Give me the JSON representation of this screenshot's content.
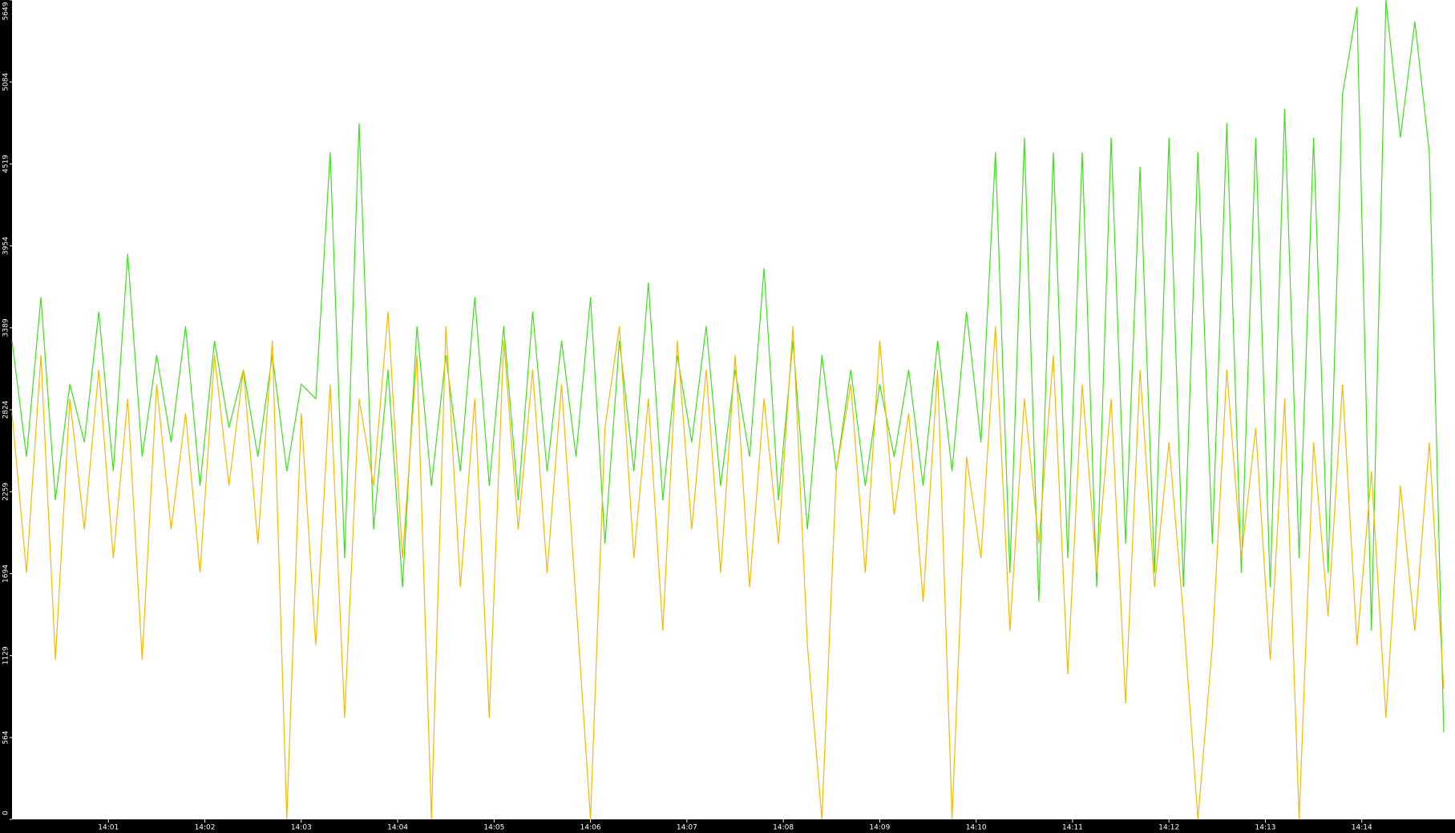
{
  "chart_data": {
    "type": "line",
    "x": [
      0,
      9,
      18,
      27,
      36,
      45,
      54,
      63,
      72,
      81,
      90,
      99,
      108,
      117,
      126,
      135,
      144,
      153,
      162,
      171,
      180,
      189,
      198,
      207,
      216,
      225,
      234,
      243,
      252,
      261,
      270,
      279,
      288,
      297,
      306,
      315,
      324,
      333,
      342,
      351,
      360,
      369,
      378,
      387,
      396,
      405,
      414,
      423,
      432,
      441,
      450,
      459,
      468,
      477,
      486,
      495,
      504,
      513,
      522,
      531,
      540,
      549,
      558,
      567,
      576,
      585,
      594,
      603,
      612,
      621,
      630,
      639,
      648,
      657,
      666,
      675,
      684,
      693,
      702,
      711,
      720,
      729,
      738,
      747,
      756,
      765,
      774,
      783,
      792,
      801,
      810,
      819,
      828,
      837,
      846,
      855,
      864,
      873,
      882,
      891
    ],
    "series": [
      {
        "color": "#3ee01a",
        "values": [
          3300,
          2500,
          3600,
          2200,
          3000,
          2600,
          3500,
          2400,
          3900,
          2500,
          3200,
          2600,
          3400,
          2300,
          3300,
          2700,
          3100,
          2500,
          3200,
          2400,
          3000,
          2900,
          4600,
          1800,
          4800,
          2000,
          3100,
          1600,
          3400,
          2300,
          3200,
          2400,
          3600,
          2300,
          3400,
          2200,
          3500,
          2400,
          3300,
          2500,
          3600,
          1900,
          3300,
          2400,
          3700,
          2200,
          3200,
          2600,
          3400,
          2300,
          3100,
          2500,
          3800,
          2200,
          3300,
          2000,
          3200,
          2400,
          3100,
          2300,
          3000,
          2500,
          3100,
          2300,
          3300,
          2400,
          3500,
          2600,
          4600,
          1700,
          4700,
          1500,
          4600,
          1800,
          4600,
          1600,
          4700,
          1900,
          4500,
          1700,
          4700,
          1600,
          4600,
          1900,
          4800,
          1700,
          4700,
          1600,
          4900,
          1800,
          4700,
          1700,
          5000,
          5600,
          1300,
          5649,
          4700,
          5500,
          4600,
          600
        ]
      },
      {
        "color": "#f7b800",
        "values": [
          2800,
          1700,
          3200,
          1100,
          2900,
          2000,
          3100,
          1800,
          2900,
          1100,
          3000,
          2000,
          2800,
          1700,
          3200,
          2300,
          3100,
          1900,
          3300,
          0,
          2800,
          1200,
          3000,
          700,
          2900,
          2300,
          3500,
          1800,
          3200,
          0,
          3400,
          1600,
          2900,
          700,
          3300,
          2000,
          3100,
          1700,
          3000,
          1500,
          0,
          2700,
          3400,
          1800,
          2900,
          1300,
          3300,
          2000,
          3100,
          1700,
          3200,
          1600,
          2900,
          1900,
          3400,
          1200,
          0,
          2400,
          3000,
          1700,
          3300,
          2100,
          2800,
          1500,
          3100,
          0,
          2500,
          1800,
          3400,
          1300,
          2900,
          1900,
          3200,
          1000,
          3000,
          1700,
          2900,
          800,
          3100,
          1600,
          2600,
          1400,
          0,
          1200,
          3100,
          1800,
          2700,
          1100,
          2900,
          0,
          2600,
          1400,
          3000,
          1200,
          2400,
          700,
          2300,
          1300,
          2600,
          900
        ]
      }
    ],
    "xlim": [
      0,
      898
    ],
    "xticks": [
      {
        "value": 60,
        "label": "14:01"
      },
      {
        "value": 120,
        "label": "14:02"
      },
      {
        "value": 180,
        "label": "14:03"
      },
      {
        "value": 240,
        "label": "14:04"
      },
      {
        "value": 300,
        "label": "14:05"
      },
      {
        "value": 360,
        "label": "14:06"
      },
      {
        "value": 420,
        "label": "14:07"
      },
      {
        "value": 480,
        "label": "14:08"
      },
      {
        "value": 540,
        "label": "14:09"
      },
      {
        "value": 600,
        "label": "14:10"
      },
      {
        "value": 660,
        "label": "14:11"
      },
      {
        "value": 720,
        "label": "14:12"
      },
      {
        "value": 780,
        "label": "14:13"
      },
      {
        "value": 840,
        "label": "14:14"
      }
    ],
    "ylim": [
      0,
      5649
    ],
    "yticks": [
      0,
      564,
      1129,
      1694,
      2259,
      2824,
      3389,
      3954,
      4519,
      5084,
      5649
    ]
  }
}
